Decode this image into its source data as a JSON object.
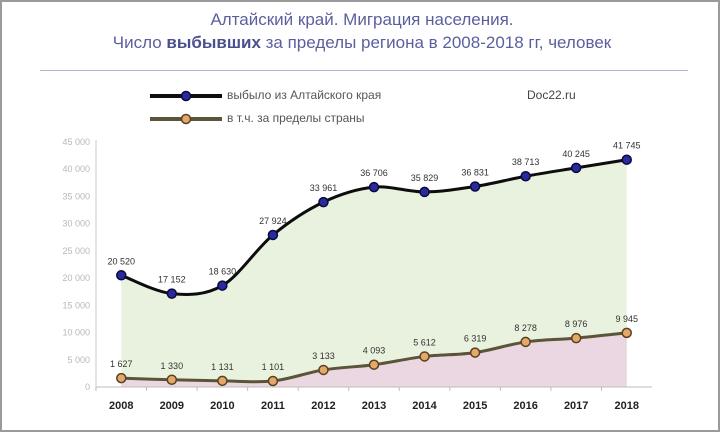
{
  "header": {
    "title_line1": "Алтайский край. Миграция населения.",
    "title_line2_pre": "Число ",
    "title_line2_bold": "выбывших",
    "title_line2_post": " за пределы региона в 2008-2018 гг, человек"
  },
  "source": "Doc22.ru",
  "colors": {
    "series1_line": "#0d0d0d",
    "series1_marker": "#2a2aa0",
    "series2_line": "#5c5438",
    "series2_marker": "#e3a96a",
    "area1_fill": "#e8f2df",
    "area2_fill": "#ead7e1",
    "title": "#5b5f9e"
  },
  "chart_data": {
    "type": "line",
    "x": [
      "2008",
      "2009",
      "2010",
      "2011",
      "2012",
      "2013",
      "2014",
      "2015",
      "2016",
      "2017",
      "2018"
    ],
    "ylim": [
      0,
      45000
    ],
    "yticks": [
      "0",
      "5 000",
      "10 000",
      "15 000",
      "20 000",
      "25 000",
      "30 000",
      "35 000",
      "40 000",
      "45 000"
    ],
    "grid": false,
    "legend_position": "top-left",
    "series": [
      {
        "name": "выбыло из Алтайского края",
        "values": [
          20520,
          17152,
          18630,
          27924,
          33961,
          36706,
          35829,
          36831,
          38713,
          40245,
          41745
        ],
        "labels": [
          "20 520",
          "17 152",
          "18 630",
          "27 924",
          "33 961",
          "36 706",
          "35 829",
          "36 831",
          "38 713",
          "40 245",
          "41 745"
        ]
      },
      {
        "name": "в т.ч.  за пределы страны",
        "values": [
          1627,
          1330,
          1131,
          1101,
          3133,
          4093,
          5612,
          6319,
          8278,
          8976,
          9945
        ],
        "labels": [
          "1 627",
          "1 330",
          "1 131",
          "1 101",
          "3 133",
          "4 093",
          "5 612",
          "6 319",
          "8 278",
          "8 976",
          "9 945"
        ]
      }
    ]
  }
}
